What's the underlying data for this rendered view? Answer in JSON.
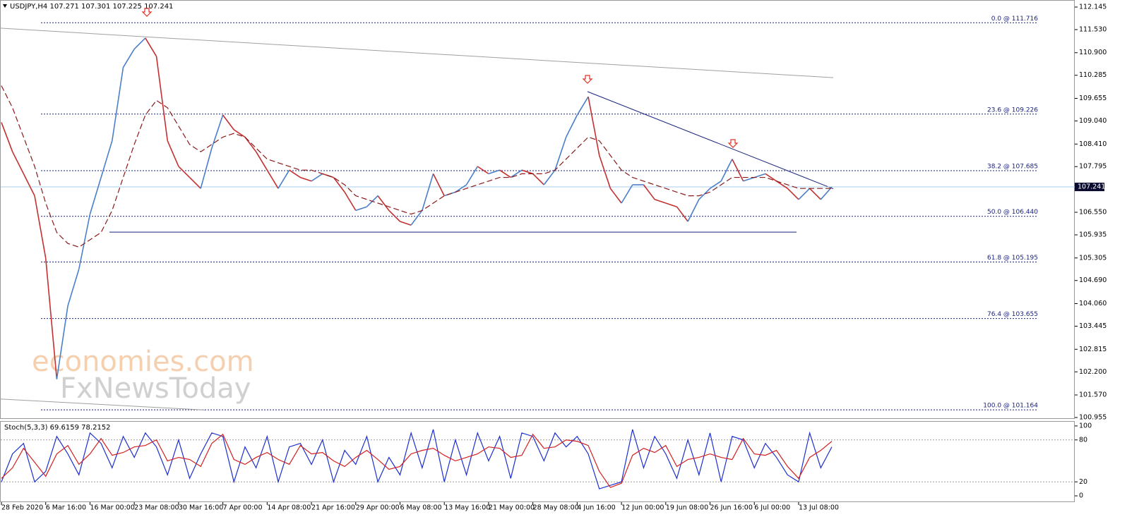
{
  "chart_data": [
    {
      "type": "line",
      "title": "USDJPY,H4  107.271 107.301 107.225 107.241",
      "categories": [
        "28 Feb 2020",
        null,
        null,
        null,
        "6 Mar 16:00",
        null,
        null,
        null,
        "16 Mar 00:00",
        null,
        null,
        null,
        "23 Mar 08:00",
        null,
        null,
        null,
        "30 Mar 16:00",
        null,
        null,
        null,
        "7 Apr 00:00",
        null,
        null,
        null,
        "14 Apr 08:00",
        null,
        null,
        null,
        "21 Apr 16:00",
        null,
        null,
        null,
        "29 Apr 00:00",
        null,
        null,
        null,
        "6 May 08:00",
        null,
        null,
        null,
        "13 May 16:00",
        null,
        null,
        null,
        "21 May 00:00",
        null,
        null,
        null,
        "28 May 08:00",
        null,
        null,
        null,
        "4 Jun 16:00",
        null,
        null,
        null,
        "12 Jun 00:00",
        null,
        null,
        null,
        "19 Jun 08:00",
        null,
        null,
        null,
        "26 Jun 16:00",
        null,
        null,
        null,
        "6 Jul 00:00",
        null,
        null,
        null,
        "13 Jul 08:00",
        null,
        null,
        null
      ],
      "series": [
        {
          "color": "#4a7fc9",
          "values": [
            109.0,
            108.2,
            107.6,
            107.0,
            105.3,
            102.0,
            104.0,
            105.0,
            106.5,
            107.5,
            108.5,
            110.5,
            111.0,
            111.3,
            110.8,
            108.5,
            107.8,
            107.5,
            107.2,
            108.3,
            109.2,
            108.8,
            108.6,
            108.2,
            107.7,
            107.2,
            107.7,
            107.5,
            107.4,
            107.6,
            107.5,
            107.1,
            106.6,
            106.7,
            107.0,
            106.6,
            106.3,
            106.2,
            106.6,
            107.6,
            107.0,
            107.1,
            107.3,
            107.8,
            107.6,
            107.7,
            107.5,
            107.7,
            107.6,
            107.3,
            107.7,
            108.6,
            109.2,
            109.7,
            108.1,
            107.2,
            106.8,
            107.3,
            107.3,
            106.9,
            106.8,
            106.7,
            106.3,
            106.9,
            107.2,
            107.4,
            108.0,
            107.4,
            107.5,
            107.6,
            107.4,
            107.2,
            106.9,
            107.2,
            106.9,
            107.241
          ]
        },
        {
          "color": "#8b1a1a",
          "dashed": true,
          "values": [
            110.0,
            109.4,
            108.6,
            107.8,
            106.8,
            106.0,
            105.7,
            105.6,
            105.8,
            106.0,
            106.6,
            107.5,
            108.4,
            109.2,
            109.6,
            109.4,
            108.9,
            108.4,
            108.2,
            108.4,
            108.6,
            108.7,
            108.6,
            108.3,
            108.0,
            107.9,
            107.8,
            107.7,
            107.7,
            107.6,
            107.5,
            107.3,
            107.0,
            106.9,
            106.8,
            106.7,
            106.6,
            106.5,
            106.6,
            106.8,
            107.0,
            107.1,
            107.2,
            107.3,
            107.4,
            107.5,
            107.5,
            107.6,
            107.6,
            107.6,
            107.7,
            108.0,
            108.3,
            108.6,
            108.5,
            108.1,
            107.7,
            107.5,
            107.4,
            107.3,
            107.2,
            107.1,
            107.0,
            107.0,
            107.1,
            107.3,
            107.5,
            107.5,
            107.5,
            107.5,
            107.4,
            107.3,
            107.2,
            107.2,
            107.2,
            107.2
          ]
        }
      ],
      "down_color": "#c43030",
      "ylim": [
        100.936,
        112.337
      ],
      "yticks": [
        112.145,
        {
          "value": 111.53,
          "label": "111.530"
        },
        {
          "value": 110.9,
          "label": "110.900"
        },
        110.285,
        109.655,
        {
          "value": 109.04,
          "label": "109.040"
        },
        {
          "value": 108.41,
          "label": "108.410"
        },
        107.795,
        {
          "value": 106.55,
          "label": "106.550"
        },
        105.935,
        105.305,
        {
          "value": 104.69,
          "label": "104.690"
        },
        {
          "value": 104.06,
          "label": "104.060"
        },
        103.445,
        102.815,
        {
          "value": 102.2,
          "label": "102.200"
        },
        {
          "value": 101.57,
          "label": "101.570"
        },
        100.955
      ],
      "last_price": 107.241,
      "fib_levels": [
        {
          "value": 111.716,
          "label": "0.0 @ 111.716"
        },
        {
          "value": 109.226,
          "label": "23.6 @ 109.226"
        },
        {
          "value": 107.685,
          "label": "38.2 @ 107.685"
        },
        {
          "value": 106.44,
          "label": "50.0 @ 106.440"
        },
        {
          "value": 105.195,
          "label": "61.8 @ 105.195"
        },
        {
          "value": 103.655,
          "label": "76.4 @ 103.655"
        },
        {
          "value": 101.164,
          "label": "100.0 @ 101.164"
        }
      ],
      "trendlines": [
        {
          "color": "#a0a0a0",
          "values": [
            111.57,
            110.22
          ]
        },
        {
          "color": "#a0a0a0",
          "values": [
            101.46,
            101.16
          ]
        },
        {
          "color": "#1a237e",
          "values": [
            106.01,
            106.01
          ]
        },
        {
          "color": "#1a237e",
          "values": [
            109.84,
            107.19
          ]
        }
      ],
      "watermark": [
        "economies.com",
        "FxNewsToday"
      ]
    },
    {
      "type": "line",
      "title": "Stoch(5,3,3) 69.6159 78.2152",
      "series": [
        {
          "color": "#1c2fd0",
          "values": [
            20,
            60,
            75,
            20,
            35,
            85,
            60,
            30,
            90,
            75,
            40,
            85,
            55,
            90,
            70,
            30,
            80,
            25,
            60,
            90,
            85,
            20,
            70,
            40,
            85,
            20,
            70,
            75,
            45,
            80,
            20,
            65,
            45,
            85,
            20,
            55,
            30,
            90,
            40,
            95,
            20,
            80,
            30,
            90,
            50,
            85,
            25,
            90,
            85,
            50,
            90,
            70,
            85,
            60,
            10,
            15,
            20,
            95,
            40,
            85,
            60,
            25,
            80,
            30,
            90,
            20,
            85,
            80,
            40,
            75,
            55,
            30,
            20,
            90,
            40,
            70
          ]
        },
        {
          "color": "#d42020",
          "values": [
            25,
            40,
            68,
            48,
            28,
            60,
            72,
            45,
            60,
            82,
            58,
            62,
            70,
            72,
            80,
            50,
            55,
            52,
            42,
            75,
            88,
            52,
            45,
            55,
            62,
            52,
            45,
            72,
            60,
            62,
            50,
            42,
            55,
            65,
            52,
            38,
            42,
            60,
            65,
            68,
            58,
            50,
            55,
            60,
            70,
            68,
            55,
            58,
            88,
            68,
            70,
            80,
            78,
            72,
            35,
            12,
            18,
            58,
            68,
            62,
            72,
            42,
            52,
            55,
            60,
            55,
            52,
            82,
            60,
            58,
            65,
            42,
            25,
            55,
            65,
            78
          ]
        }
      ],
      "ylim": [
        -9,
        106
      ],
      "yticks": [
        100,
        80,
        20,
        0
      ]
    }
  ]
}
